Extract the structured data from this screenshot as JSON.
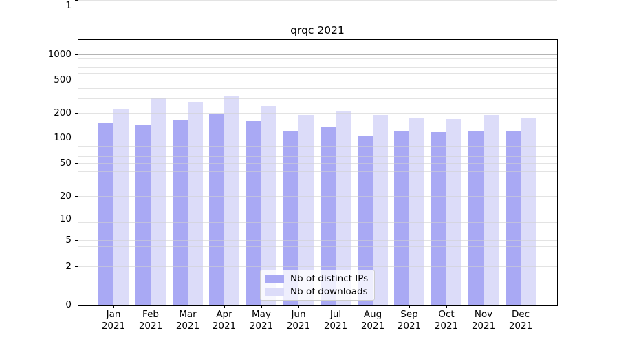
{
  "chart_data": {
    "type": "bar",
    "title": "qrqc 2021",
    "categories": [
      "Jan 2021",
      "Feb 2021",
      "Mar 2021",
      "Apr 2021",
      "May 2021",
      "Jun 2021",
      "Jul 2021",
      "Aug 2021",
      "Sep 2021",
      "Oct 2021",
      "Nov 2021",
      "Dec 2021"
    ],
    "series": [
      {
        "name": "Nb of distinct IPs",
        "color": "#a9a9f4",
        "values": [
          149,
          142,
          163,
          197,
          158,
          121,
          134,
          104,
          122,
          116,
          122,
          119
        ]
      },
      {
        "name": "Nb of downloads",
        "color": "#dcdcf9",
        "values": [
          222,
          301,
          273,
          318,
          240,
          187,
          206,
          187,
          171,
          168,
          187,
          174
        ]
      }
    ],
    "xlabel": "",
    "ylabel": "",
    "yscale": "symlog",
    "yticks": [
      0,
      1,
      2,
      5,
      10,
      20,
      50,
      100,
      200,
      500,
      1000
    ],
    "ylim": [
      0,
      1500
    ],
    "grid": "both",
    "legend_position": "lower center"
  },
  "colors": {
    "bar_dark": "#a9a9f4",
    "bar_light": "#dcdcf9",
    "grid_major": "#aeaeae",
    "grid_minor": "#e3e3e3",
    "axis": "#000000",
    "legend_border": "#cccccc"
  }
}
